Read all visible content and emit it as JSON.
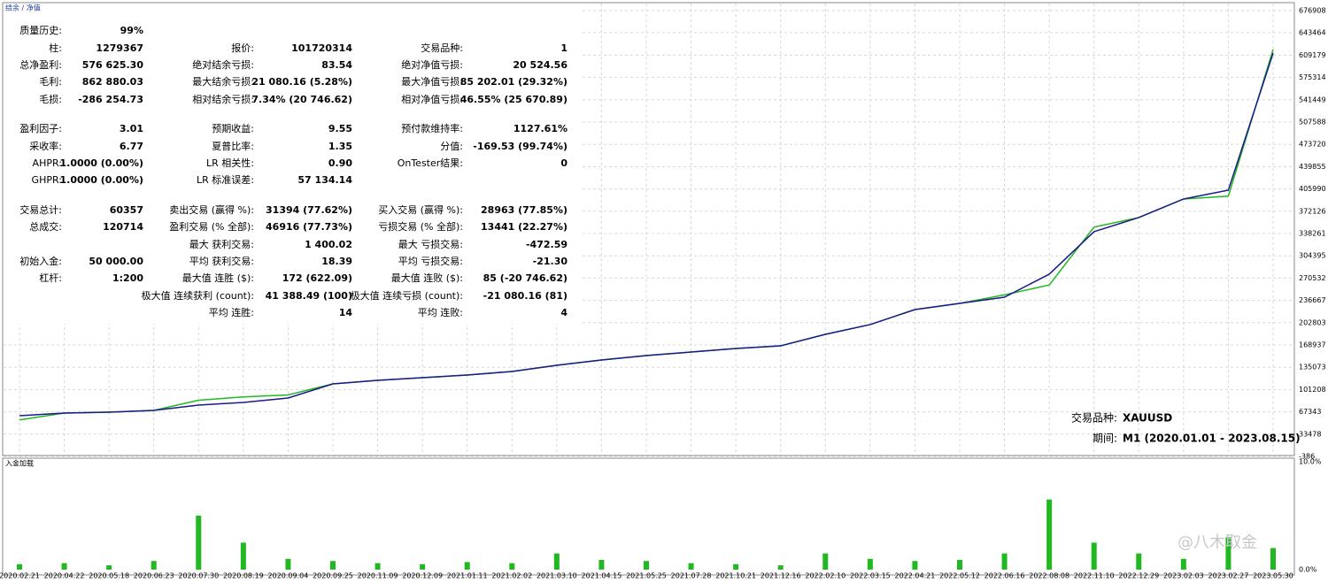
{
  "toolbar": "结余 / 净值",
  "stats": [
    [
      [
        "质量历史:",
        "99%"
      ],
      null,
      null
    ],
    [
      [
        "柱:",
        "1279367"
      ],
      [
        "报价:",
        "101720314"
      ],
      [
        "交易品种:",
        "1"
      ]
    ],
    [
      [
        "总净盈利:",
        "576 625.30"
      ],
      [
        "绝对结余亏损:",
        "83.54"
      ],
      [
        "绝对净值亏损:",
        "20 524.56"
      ]
    ],
    [
      [
        "毛利:",
        "862 880.03"
      ],
      [
        "最大结余亏损:",
        "21 080.16 (5.28%)"
      ],
      [
        "最大净值亏损:",
        "85 202.01 (29.32%)"
      ]
    ],
    [
      [
        "毛损:",
        "-286 254.73"
      ],
      [
        "相对结余亏损:",
        "7.34% (20 746.62)"
      ],
      [
        "相对净值亏损:",
        "46.55% (25 670.89)"
      ]
    ],
    [
      [
        "盈利因子:",
        "3.01"
      ],
      [
        "预期收益:",
        "9.55"
      ],
      [
        "预付款维持率:",
        "1127.61%"
      ]
    ],
    [
      [
        "采收率:",
        "6.77"
      ],
      [
        "夏普比率:",
        "1.35"
      ],
      [
        "分值:",
        "-169.53 (99.74%)"
      ]
    ],
    [
      [
        "AHPR:",
        "1.0000 (0.00%)"
      ],
      [
        "LR 相关性:",
        "0.90"
      ],
      [
        "OnTester结果:",
        "0"
      ]
    ],
    [
      [
        "GHPR:",
        "1.0000 (0.00%)"
      ],
      [
        "LR 标准误差:",
        "57 134.14"
      ],
      null
    ],
    [
      [
        "交易总计:",
        "60357"
      ],
      [
        "卖出交易 (赢得 %):",
        "31394 (77.62%)"
      ],
      [
        "买入交易 (赢得 %):",
        "28963 (77.85%)"
      ]
    ],
    [
      [
        "总成交:",
        "120714"
      ],
      [
        "盈利交易 (% 全部):",
        "46916 (77.73%)"
      ],
      [
        "亏损交易 (% 全部):",
        "13441 (22.27%)"
      ]
    ],
    [
      null,
      [
        "最大 获利交易:",
        "1 400.02"
      ],
      [
        "最大 亏损交易:",
        "-472.59"
      ]
    ],
    [
      [
        "初始入金:",
        "50 000.00"
      ],
      [
        "平均 获利交易:",
        "18.39"
      ],
      [
        "平均 亏损交易:",
        "-21.30"
      ]
    ],
    [
      [
        "杠杆:",
        "1:200"
      ],
      [
        "最大值 连胜 ($):",
        "172 (622.09)"
      ],
      [
        "最大值 连败 ($):",
        "85 (-20 746.62)"
      ]
    ],
    [
      null,
      [
        "极大值 连续获利 (count):",
        "41 388.49 (100)"
      ],
      [
        "极大值 连续亏损 (count):",
        "-21 080.16 (81)"
      ]
    ],
    [
      null,
      [
        "平均 连胜:",
        "14"
      ],
      [
        "平均 连败:",
        "4"
      ]
    ]
  ],
  "info": [
    [
      "交易品种:",
      "XAUUSD"
    ],
    [
      "期间:",
      "M1 (2020.01.01 - 2023.08.15)"
    ]
  ],
  "watermark": "@八木取金",
  "chart_data": [
    {
      "type": "line",
      "categories": [
        "2020.02.21",
        "2020.04.22",
        "2020.05.18",
        "2020.06.23",
        "2020.07.30",
        "2020.08.19",
        "2020.09.04",
        "2020.09.25",
        "2020.11.09",
        "2020.12.09",
        "2021.01.11",
        "2021.02.02",
        "2021.03.10",
        "2021.04.15",
        "2021.05.25",
        "2021.07.28",
        "2021.10.21",
        "2021.12.16",
        "2022.02.10",
        "2022.03.15",
        "2022.04.21",
        "2022.05.12",
        "2022.06.16",
        "2022.08.08",
        "2022.11.10",
        "2022.12.29",
        "2023.02.03",
        "2023.02.27",
        "2023.05.30"
      ],
      "series": [
        {
          "name": "净值",
          "color": "#22b822",
          "values": [
            55000,
            65500,
            66800,
            69500,
            85000,
            90000,
            93000,
            109800,
            115200,
            119200,
            123300,
            128600,
            138000,
            146100,
            152800,
            158200,
            163600,
            167600,
            185100,
            199900,
            222700,
            232100,
            245000,
            260000,
            348000,
            362500,
            390700,
            395000,
            618000
          ]
        },
        {
          "name": "结余",
          "color": "#1a1a8c",
          "values": [
            61400,
            65500,
            66800,
            69500,
            77600,
            81600,
            88300,
            109800,
            115200,
            119200,
            123300,
            128600,
            138000,
            146100,
            152800,
            158200,
            163600,
            167600,
            185100,
            199900,
            222700,
            232100,
            241500,
            276500,
            341000,
            362500,
            390700,
            404100,
            612400
          ]
        }
      ],
      "ylim": [
        -386,
        676908
      ],
      "yticks": [
        676908,
        643464,
        609179,
        575314,
        541449,
        507588,
        473720,
        439855,
        405990,
        372126,
        338261,
        304395,
        270532,
        236667,
        202803,
        168937,
        135073,
        101208,
        67343,
        33478,
        -386
      ],
      "grid": true
    },
    {
      "type": "bar",
      "title": "入金加载",
      "color": "#22b822",
      "values": [
        0.5,
        0.6,
        0.4,
        0.8,
        5.0,
        2.5,
        1.0,
        0.8,
        0.6,
        0.5,
        0.7,
        0.6,
        1.5,
        0.9,
        0.8,
        0.6,
        0.5,
        0.4,
        1.5,
        1.0,
        0.8,
        0.9,
        1.5,
        6.5,
        2.5,
        1.5,
        1.0,
        3.0,
        2.0
      ],
      "ylim": [
        0,
        10
      ],
      "yticks": [
        {
          "value": 10,
          "label": "10.0%"
        },
        {
          "value": 0,
          "label": "0.0%"
        }
      ]
    }
  ]
}
